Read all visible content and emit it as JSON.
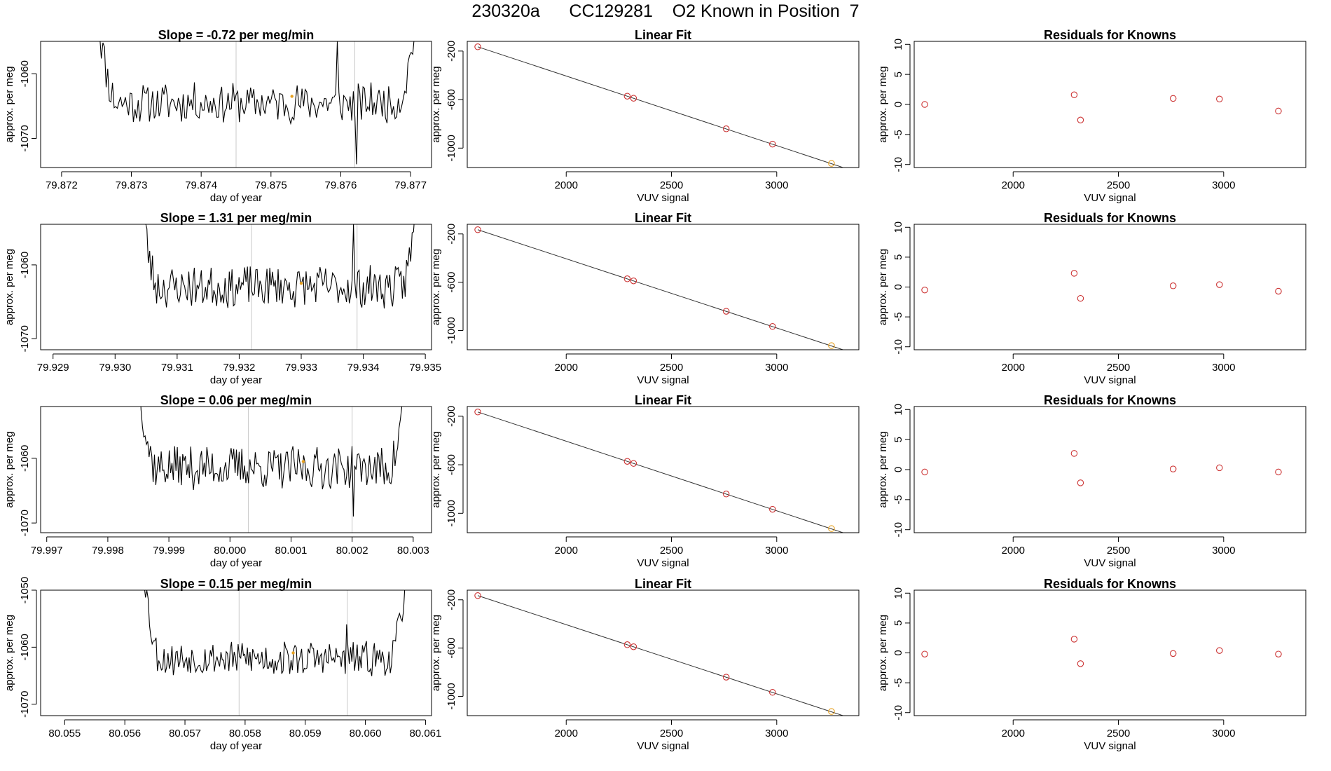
{
  "figure": {
    "title": "230320a      CC129281    O2 Known in Position  7"
  },
  "colors": {
    "trace": "#000000",
    "fit_points": "#cc3333",
    "known_point": "#e6a020",
    "marker_lines": "#c8c8c8"
  },
  "panel_text": {
    "linear_fit_title": "Linear Fit",
    "residuals_title": "Residuals for Knowns",
    "ylabel": "approx. per meg",
    "time_xlabel": "day of year",
    "vuv_xlabel": "VUV signal"
  },
  "chart_data": [
    {
      "type": "line",
      "row": 0,
      "panel": "timeseries",
      "title": "Slope =  -0.72  per meg/min",
      "xlabel": "day of year",
      "ylabel": "approx. per meg",
      "xlim": [
        79.8717,
        79.8773
      ],
      "ylim": [
        -1074.5,
        -1055.0
      ],
      "xticks": [
        79.872,
        79.873,
        79.874,
        79.875,
        79.876,
        79.877
      ],
      "xtick_labels": [
        "79.872",
        "79.873",
        "79.874",
        "79.875",
        "79.876",
        "79.877"
      ],
      "yticks": [
        -1060,
        -1070
      ],
      "ytick_labels": [
        "-1060",
        "-1070"
      ],
      "trace_start": 79.8725,
      "trace_end": 79.8771,
      "vlines": [
        79.8745,
        79.8762
      ],
      "known_point": {
        "x": 79.8753,
        "y": -1063.5
      },
      "noise_center": -1064.5,
      "noise_amp": 3.2,
      "seed": 11,
      "features": [
        {
          "x": 79.87595,
          "y": -1055
        },
        {
          "x": 79.87622,
          "y": -1074
        }
      ]
    },
    {
      "type": "scatter",
      "row": 0,
      "panel": "fit",
      "title": "Linear Fit",
      "xlabel": "VUV signal",
      "ylabel": "approx. per meg",
      "xlim": [
        1530,
        3390
      ],
      "ylim": [
        -1160,
        -120
      ],
      "xticks": [
        2000,
        2500,
        3000
      ],
      "yticks": [
        -200,
        -600,
        -1000
      ],
      "x": [
        1580,
        2290,
        2320,
        2760,
        2980,
        3260
      ],
      "y": [
        -165,
        -572,
        -589,
        -841,
        -967,
        -1126
      ],
      "known_index": 5,
      "line": {
        "x": [
          1580,
          3320
        ],
        "y": [
          -165,
          -1163
        ]
      }
    },
    {
      "type": "scatter",
      "row": 0,
      "panel": "residuals",
      "title": "Residuals for Knowns",
      "xlabel": "VUV signal",
      "ylabel": "approx. per meg",
      "xlim": [
        1530,
        3390
      ],
      "ylim": [
        -10.5,
        10.5
      ],
      "xticks": [
        2000,
        2500,
        3000
      ],
      "yticks": [
        10,
        5,
        0,
        -5,
        -10
      ],
      "x": [
        1580,
        2290,
        2320,
        2760,
        2980,
        3260
      ],
      "y": [
        0.0,
        1.6,
        -2.6,
        1.0,
        0.9,
        -1.1
      ]
    },
    {
      "type": "line",
      "row": 1,
      "panel": "timeseries",
      "title": "Slope =  1.31  per meg/min",
      "xlabel": "day of year",
      "ylabel": "approx. per meg",
      "xlim": [
        79.9288,
        79.9351
      ],
      "ylim": [
        -1071.5,
        -1054.5
      ],
      "xticks": [
        79.929,
        79.93,
        79.931,
        79.932,
        79.933,
        79.934,
        79.935
      ],
      "xtick_labels": [
        "79.929",
        "79.930",
        "79.931",
        "79.932",
        "79.933",
        "79.934",
        "79.935"
      ],
      "yticks": [
        -1060,
        -1070
      ],
      "ytick_labels": [
        "-1060",
        "-1070"
      ],
      "trace_start": 79.9304,
      "trace_end": 79.9349,
      "vlines": [
        79.9322,
        79.9339
      ],
      "known_point": {
        "x": 79.933,
        "y": -1062.5
      },
      "noise_center": -1063,
      "noise_amp": 3.0,
      "seed": 23,
      "features": [
        {
          "x": 79.93385,
          "y": -1054.5
        }
      ]
    },
    {
      "type": "scatter",
      "row": 1,
      "panel": "fit",
      "title": "Linear Fit",
      "xlabel": "VUV signal",
      "ylabel": "approx. per meg",
      "xlim": [
        1530,
        3390
      ],
      "ylim": [
        -1160,
        -120
      ],
      "xticks": [
        2000,
        2500,
        3000
      ],
      "yticks": [
        -200,
        -600,
        -1000
      ],
      "x": [
        1580,
        2290,
        2320,
        2760,
        2980,
        3260
      ],
      "y": [
        -165,
        -572,
        -589,
        -841,
        -967,
        -1126
      ],
      "known_index": 5,
      "line": {
        "x": [
          1580,
          3320
        ],
        "y": [
          -165,
          -1163
        ]
      }
    },
    {
      "type": "scatter",
      "row": 1,
      "panel": "residuals",
      "title": "Residuals for Knowns",
      "xlabel": "VUV signal",
      "ylabel": "approx. per meg",
      "xlim": [
        1530,
        3390
      ],
      "ylim": [
        -10.5,
        10.5
      ],
      "xticks": [
        2000,
        2500,
        3000
      ],
      "yticks": [
        10,
        5,
        0,
        -5,
        -10
      ],
      "x": [
        1580,
        2290,
        2320,
        2760,
        2980,
        3260
      ],
      "y": [
        -0.5,
        2.3,
        -1.9,
        0.2,
        0.4,
        -0.7
      ]
    },
    {
      "type": "line",
      "row": 2,
      "panel": "timeseries",
      "title": "Slope =  0.06  per meg/min",
      "xlabel": "day of year",
      "ylabel": "approx. per meg",
      "xlim": [
        79.9969,
        80.0033
      ],
      "ylim": [
        -1071.5,
        -1052.0
      ],
      "xticks": [
        79.997,
        79.998,
        79.999,
        80.0,
        80.001,
        80.002,
        80.003
      ],
      "xtick_labels": [
        "79.997",
        "79.998",
        "79.999",
        "80.000",
        "80.001",
        "80.002",
        "80.003"
      ],
      "yticks": [
        -1060,
        -1070
      ],
      "ytick_labels": [
        "-1060",
        "-1070"
      ],
      "trace_start": 79.9985,
      "trace_end": 80.0029,
      "vlines": [
        80.0003,
        80.002
      ],
      "known_point": {
        "x": 80.0012,
        "y": -1060.5
      },
      "noise_center": -1061.5,
      "noise_amp": 3.4,
      "seed": 37,
      "features": [
        {
          "x": 80.00202,
          "y": -1069
        }
      ]
    },
    {
      "type": "scatter",
      "row": 2,
      "panel": "fit",
      "title": "Linear Fit",
      "xlabel": "VUV signal",
      "ylabel": "approx. per meg",
      "xlim": [
        1530,
        3390
      ],
      "ylim": [
        -1160,
        -120
      ],
      "xticks": [
        2000,
        2500,
        3000
      ],
      "yticks": [
        -200,
        -600,
        -1000
      ],
      "x": [
        1580,
        2290,
        2320,
        2760,
        2980,
        3260
      ],
      "y": [
        -165,
        -572,
        -589,
        -841,
        -967,
        -1126
      ],
      "known_index": 5,
      "line": {
        "x": [
          1580,
          3320
        ],
        "y": [
          -165,
          -1163
        ]
      }
    },
    {
      "type": "scatter",
      "row": 2,
      "panel": "residuals",
      "title": "Residuals for Knowns",
      "xlabel": "VUV signal",
      "ylabel": "approx. per meg",
      "xlim": [
        1530,
        3390
      ],
      "ylim": [
        -10.5,
        10.5
      ],
      "xticks": [
        2000,
        2500,
        3000
      ],
      "yticks": [
        10,
        5,
        0,
        -5,
        -10
      ],
      "x": [
        1580,
        2290,
        2320,
        2760,
        2980,
        3260
      ],
      "y": [
        -0.4,
        2.7,
        -2.2,
        0.1,
        0.3,
        -0.4
      ]
    },
    {
      "type": "line",
      "row": 3,
      "panel": "timeseries",
      "title": "Slope =  0.15  per meg/min",
      "xlabel": "day of year",
      "ylabel": "approx. per meg",
      "xlim": [
        80.0546,
        80.0611
      ],
      "ylim": [
        -1072.0,
        -1050.0
      ],
      "xticks": [
        80.055,
        80.056,
        80.057,
        80.058,
        80.059,
        80.06,
        80.061
      ],
      "xtick_labels": [
        "80.055",
        "80.056",
        "80.057",
        "80.058",
        "80.059",
        "80.060",
        "80.061"
      ],
      "yticks": [
        -1050,
        -1060,
        -1070
      ],
      "ytick_labels": [
        "-1050",
        "-1060",
        "-1070"
      ],
      "trace_start": 80.0563,
      "trace_end": 80.0607,
      "vlines": [
        80.0579,
        80.0597
      ],
      "known_point": {
        "x": 80.0588,
        "y": -1061
      },
      "noise_center": -1062,
      "noise_amp": 3.2,
      "seed": 53,
      "features": [
        {
          "x": 80.05968,
          "y": -1056
        }
      ]
    },
    {
      "type": "scatter",
      "row": 3,
      "panel": "fit",
      "title": "Linear Fit",
      "xlabel": "VUV signal",
      "ylabel": "approx. per meg",
      "xlim": [
        1530,
        3390
      ],
      "ylim": [
        -1160,
        -120
      ],
      "xticks": [
        2000,
        2500,
        3000
      ],
      "yticks": [
        -200,
        -600,
        -1000
      ],
      "x": [
        1580,
        2290,
        2320,
        2760,
        2980,
        3260
      ],
      "y": [
        -165,
        -572,
        -589,
        -841,
        -967,
        -1126
      ],
      "known_index": 5,
      "line": {
        "x": [
          1580,
          3320
        ],
        "y": [
          -165,
          -1163
        ]
      }
    },
    {
      "type": "scatter",
      "row": 3,
      "panel": "residuals",
      "title": "Residuals for Knowns",
      "xlabel": "VUV signal",
      "ylabel": "approx. per meg",
      "xlim": [
        1530,
        3390
      ],
      "ylim": [
        -10.5,
        10.5
      ],
      "xticks": [
        2000,
        2500,
        3000
      ],
      "yticks": [
        10,
        5,
        0,
        -5,
        -10
      ],
      "x": [
        1580,
        2290,
        2320,
        2760,
        2980,
        3260
      ],
      "y": [
        -0.2,
        2.3,
        -1.8,
        -0.1,
        0.4,
        -0.2
      ]
    }
  ]
}
